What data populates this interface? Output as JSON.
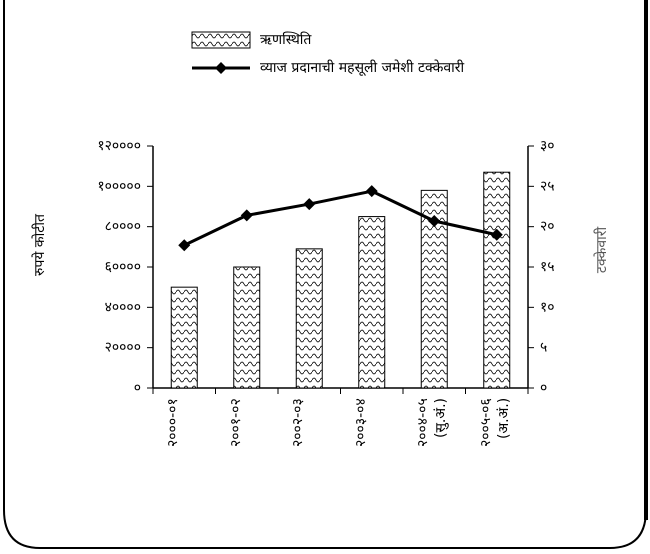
{
  "chart_data": {
    "type": "bar_line",
    "categories": [
      "२०००-०१",
      "२००१-०२",
      "२००२-०३",
      "२००३-०४",
      "२००४-०५ (सु.अं.)",
      "२००५-०६ (अ.अं.)"
    ],
    "series": [
      {
        "name": "ऋणस्थिति",
        "type": "bar",
        "color": "#000000",
        "values": [
          50000,
          60000,
          69000,
          85000,
          98000,
          107000
        ]
      },
      {
        "name": "व्याज प्रदानाची महसूली जमेशी टक्केवारी",
        "type": "line",
        "axis": "y2",
        "color": "#000000",
        "values": [
          17.7,
          21.4,
          22.8,
          24.4,
          20.7,
          19.0
        ]
      }
    ],
    "ylabel": "रुपये कोटीत",
    "y2label": "टक्केवारी",
    "ylim": [
      0,
      120000
    ],
    "yticks": [
      {
        "value": 0,
        "label": "०"
      },
      {
        "value": 20000,
        "label": "२००००"
      },
      {
        "value": 40000,
        "label": "४००००"
      },
      {
        "value": 60000,
        "label": "६००००"
      },
      {
        "value": 80000,
        "label": "८००००"
      },
      {
        "value": 100000,
        "label": "१०००००"
      },
      {
        "value": 120000,
        "label": "१२००००"
      }
    ],
    "y2lim": [
      0,
      30
    ],
    "y2ticks": [
      {
        "value": 0,
        "label": "०"
      },
      {
        "value": 5,
        "label": "५"
      },
      {
        "value": 10,
        "label": "१०"
      },
      {
        "value": 15,
        "label": "१५"
      },
      {
        "value": 20,
        "label": "२०"
      },
      {
        "value": 25,
        "label": "२५"
      },
      {
        "value": 30,
        "label": "३०"
      }
    ],
    "grid": false
  }
}
